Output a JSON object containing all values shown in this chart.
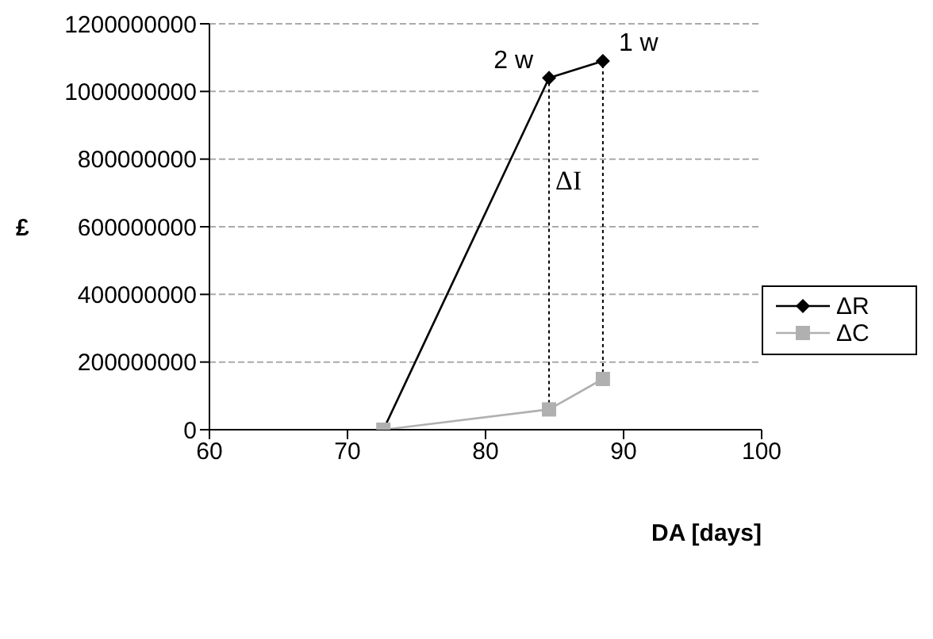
{
  "chart_data": {
    "type": "line",
    "xlabel": "DA [days]",
    "ylabel": "£",
    "x": [
      72.6,
      84.6,
      88.5
    ],
    "series": [
      {
        "name": "ΔR",
        "color": "#000000",
        "marker": "diamond",
        "values": [
          0,
          1040000000,
          1090000000
        ]
      },
      {
        "name": "ΔC",
        "color": "#b0b0b0",
        "marker": "square",
        "values": [
          0,
          60000000,
          150000000
        ]
      }
    ],
    "xlim": [
      60,
      100
    ],
    "xticks": [
      60,
      70,
      80,
      90,
      100
    ],
    "ylim": [
      0,
      1200000000
    ],
    "yticks": [
      0,
      200000000,
      400000000,
      600000000,
      800000000,
      1000000000,
      1200000000
    ],
    "grid": "y",
    "legend": "right",
    "ref_lines": [
      {
        "axis": "x",
        "value": 84.6,
        "color": "#000000",
        "line_style": "dotted",
        "label": "ΔI"
      },
      {
        "axis": "x",
        "value": 88.5,
        "color": "#000000",
        "line_style": "dotted"
      }
    ],
    "annotations": [
      {
        "text": "2 w",
        "x": 84.6,
        "y": 1040000000
      },
      {
        "text": "1 w",
        "x": 88.5,
        "y": 1090000000
      }
    ]
  }
}
